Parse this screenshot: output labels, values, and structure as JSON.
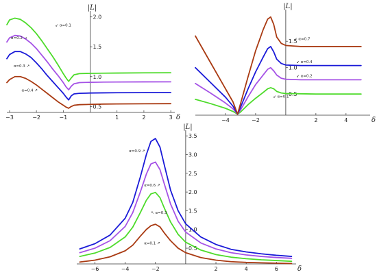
{
  "figure": {
    "background": "#ffffff"
  },
  "chart_data": [
    {
      "id": "panel-a",
      "type": "line",
      "xlim": [
        -3.1,
        3.15
      ],
      "ylim": [
        0.4,
        2.1
      ],
      "xticks": [
        -3,
        -2,
        -1,
        1,
        2,
        3
      ],
      "yticks": [
        0.5,
        1.0,
        1.5,
        2.0
      ],
      "xtick_labels": [
        "−3",
        "−2",
        "−1",
        "1",
        "2",
        "3"
      ],
      "ytick_labels": [
        "0.5",
        "1.0",
        "1.5",
        "2.0"
      ],
      "xlabel": "δ",
      "ylabel": "|L|",
      "grid": false,
      "series": [
        {
          "color": "#4ddb2a",
          "x": [
            -3.1,
            -3,
            -2.8,
            -2.6,
            -2.4,
            -2.2,
            -2,
            -1.8,
            -1.6,
            -1.4,
            -1.2,
            -1,
            -0.9,
            -0.8,
            -0.7,
            -0.6,
            -0.4,
            0,
            0.5,
            1,
            2,
            3
          ],
          "y": [
            1.87,
            1.95,
            1.98,
            1.96,
            1.9,
            1.82,
            1.72,
            1.6,
            1.47,
            1.34,
            1.2,
            1.05,
            0.98,
            0.92,
            0.98,
            1.03,
            1.05,
            1.055,
            1.058,
            1.06,
            1.063,
            1.065
          ]
        },
        {
          "color": "#a552e6",
          "x": [
            -3.1,
            -3,
            -2.8,
            -2.6,
            -2.4,
            -2.2,
            -2,
            -1.8,
            -1.6,
            -1.4,
            -1.2,
            -1,
            -0.9,
            -0.8,
            -0.7,
            -0.6,
            -0.4,
            0,
            0.5,
            1,
            2,
            3
          ],
          "y": [
            1.58,
            1.65,
            1.69,
            1.68,
            1.63,
            1.56,
            1.47,
            1.36,
            1.25,
            1.13,
            1.02,
            0.9,
            0.83,
            0.78,
            0.84,
            0.88,
            0.9,
            0.905,
            0.908,
            0.91,
            0.912,
            0.913
          ]
        },
        {
          "color": "#1a1ad8",
          "x": [
            -3.1,
            -3,
            -2.8,
            -2.6,
            -2.4,
            -2.2,
            -2,
            -1.8,
            -1.6,
            -1.4,
            -1.2,
            -1,
            -0.9,
            -0.8,
            -0.7,
            -0.6,
            -0.4,
            0,
            0.5,
            1,
            2,
            3
          ],
          "y": [
            1.3,
            1.37,
            1.42,
            1.42,
            1.38,
            1.32,
            1.23,
            1.13,
            1.02,
            0.92,
            0.82,
            0.72,
            0.66,
            0.61,
            0.68,
            0.71,
            0.72,
            0.725,
            0.728,
            0.73,
            0.732,
            0.733
          ]
        },
        {
          "color": "#a93a12",
          "x": [
            -3.1,
            -3,
            -2.8,
            -2.6,
            -2.4,
            -2.2,
            -2,
            -1.8,
            -1.6,
            -1.4,
            -1.2,
            -1,
            -0.9,
            -0.8,
            -0.7,
            -0.6,
            -0.4,
            0,
            0.5,
            1,
            2,
            3
          ],
          "y": [
            0.9,
            0.95,
            1.0,
            1.0,
            0.97,
            0.92,
            0.86,
            0.79,
            0.72,
            0.65,
            0.58,
            0.52,
            0.49,
            0.47,
            0.5,
            0.52,
            0.53,
            0.535,
            0.54,
            0.542,
            0.545,
            0.547
          ]
        }
      ],
      "annotations": [
        {
          "text": "↙ α=0.1",
          "x": -1.3,
          "y": 1.84
        },
        {
          "text": "α=0.2 →",
          "x": -2.95,
          "y": 1.63
        },
        {
          "text": "α=0.3 ↗",
          "x": -2.85,
          "y": 1.16
        },
        {
          "text": "α=0.4 ↗",
          "x": -2.55,
          "y": 0.75
        }
      ]
    },
    {
      "id": "panel-b",
      "type": "line",
      "xlim": [
        -6,
        5.6
      ],
      "ylim": [
        0.1,
        2.1
      ],
      "xticks": [
        -4,
        -2,
        2,
        4
      ],
      "yticks": [
        0.5,
        1.0,
        1.5
      ],
      "xtick_labels": [
        "−4",
        "−2",
        "2",
        "4"
      ],
      "ytick_labels": [
        "0.5",
        "1.0",
        "1.5"
      ],
      "xlabel": "δ",
      "ylabel": "|L|",
      "grid": false,
      "series": [
        {
          "color": "#4ddb2a",
          "x": [
            -6,
            -5,
            -4,
            -3.5,
            -3.2,
            -3,
            -2.5,
            -2,
            -1.5,
            -1.2,
            -1,
            -0.8,
            -0.6,
            -0.3,
            0,
            1,
            2,
            3,
            4,
            5
          ],
          "y": [
            0.4,
            0.32,
            0.23,
            0.17,
            0.12,
            0.16,
            0.3,
            0.42,
            0.53,
            0.6,
            0.62,
            0.6,
            0.55,
            0.52,
            0.51,
            0.505,
            0.5,
            0.5,
            0.5,
            0.5
          ]
        },
        {
          "color": "#a552e6",
          "x": [
            -6,
            -5,
            -4,
            -3.5,
            -3.2,
            -3,
            -2.5,
            -2,
            -1.5,
            -1.2,
            -1,
            -0.8,
            -0.6,
            -0.3,
            0,
            1,
            2,
            3,
            4,
            5
          ],
          "y": [
            0.7,
            0.52,
            0.33,
            0.22,
            0.12,
            0.2,
            0.45,
            0.68,
            0.86,
            0.97,
            1.0,
            0.94,
            0.86,
            0.8,
            0.78,
            0.77,
            0.77,
            0.77,
            0.77,
            0.77
          ]
        },
        {
          "color": "#1a1ad8",
          "x": [
            -6,
            -5,
            -4,
            -3.5,
            -3.2,
            -3,
            -2.5,
            -2,
            -1.5,
            -1.2,
            -1,
            -0.8,
            -0.6,
            -0.3,
            0,
            1,
            2,
            3,
            4,
            5
          ],
          "y": [
            1.0,
            0.72,
            0.44,
            0.27,
            0.12,
            0.25,
            0.6,
            0.92,
            1.2,
            1.36,
            1.4,
            1.3,
            1.16,
            1.08,
            1.05,
            1.04,
            1.04,
            1.04,
            1.04,
            1.04
          ]
        },
        {
          "color": "#a93a12",
          "x": [
            -6,
            -5,
            -4,
            -3.5,
            -3.2,
            -3,
            -2.5,
            -2,
            -1.5,
            -1.2,
            -1,
            -0.8,
            -0.6,
            -0.3,
            0,
            1,
            2,
            3,
            4,
            5
          ],
          "y": [
            1.6,
            1.1,
            0.6,
            0.35,
            0.12,
            0.32,
            0.83,
            1.32,
            1.72,
            1.92,
            1.96,
            1.82,
            1.58,
            1.46,
            1.42,
            1.4,
            1.4,
            1.4,
            1.4,
            1.4
          ]
        }
      ],
      "annotations": [
        {
          "text": "↙ α=0.1",
          "x": -0.85,
          "y": 0.43
        },
        {
          "text": "↙ α=0.2",
          "x": 0.7,
          "y": 0.82
        },
        {
          "text": "↙ α=0.4",
          "x": 0.7,
          "y": 1.09
        },
        {
          "text": "↙ α=0.7",
          "x": 0.55,
          "y": 1.52
        }
      ]
    },
    {
      "id": "panel-c",
      "type": "line",
      "xlim": [
        -7.2,
        7.3
      ],
      "ylim": [
        0.08,
        3.65
      ],
      "xticks": [
        -6,
        -4,
        -2,
        2,
        4,
        6
      ],
      "yticks": [
        0.5,
        1.0,
        1.5,
        2.0,
        2.5,
        3.0,
        3.5
      ],
      "xtick_labels": [
        "−6",
        "−4",
        "−2",
        "2",
        "4",
        "6"
      ],
      "ytick_labels": [
        "0.5",
        "1.0",
        "1.5",
        "2.0",
        "2.5",
        "3.0",
        "3.5"
      ],
      "xlabel": "δ",
      "ylabel": "|L|",
      "grid": false,
      "series": [
        {
          "color": "#1a1ad8",
          "x": [
            -7,
            -6,
            -5,
            -4,
            -3.5,
            -3,
            -2.6,
            -2.3,
            -2,
            -1.7,
            -1.4,
            -1,
            -0.5,
            0,
            1,
            2,
            3,
            4,
            5,
            6,
            7
          ],
          "y": [
            0.48,
            0.62,
            0.85,
            1.3,
            1.72,
            2.4,
            3.0,
            3.35,
            3.43,
            3.2,
            2.7,
            2.05,
            1.5,
            1.15,
            0.8,
            0.6,
            0.47,
            0.4,
            0.35,
            0.31,
            0.28
          ]
        },
        {
          "color": "#a552e6",
          "x": [
            -7,
            -6,
            -5,
            -4,
            -3.5,
            -3,
            -2.6,
            -2.3,
            -2,
            -1.7,
            -1.4,
            -1,
            -0.5,
            0,
            1,
            2,
            3,
            4,
            5,
            6,
            7
          ],
          "y": [
            0.38,
            0.5,
            0.7,
            1.08,
            1.45,
            2.0,
            2.48,
            2.75,
            2.8,
            2.6,
            2.2,
            1.68,
            1.22,
            0.93,
            0.64,
            0.48,
            0.38,
            0.32,
            0.28,
            0.25,
            0.23
          ]
        },
        {
          "color": "#4ddb2a",
          "x": [
            -7,
            -6,
            -5,
            -4,
            -3.5,
            -3,
            -2.6,
            -2.3,
            -2,
            -1.7,
            -1.4,
            -1,
            -0.5,
            0,
            1,
            2,
            3,
            4,
            5,
            6,
            7
          ],
          "y": [
            0.28,
            0.37,
            0.52,
            0.8,
            1.06,
            1.45,
            1.78,
            1.95,
            1.99,
            1.85,
            1.56,
            1.2,
            0.87,
            0.66,
            0.45,
            0.33,
            0.26,
            0.22,
            0.19,
            0.17,
            0.15
          ]
        },
        {
          "color": "#a93a12",
          "x": [
            -7,
            -6,
            -5,
            -4,
            -3.5,
            -3,
            -2.6,
            -2.3,
            -2,
            -1.7,
            -1.4,
            -1,
            -0.5,
            0,
            1,
            2,
            3,
            4,
            5,
            6,
            7
          ],
          "y": [
            0.13,
            0.18,
            0.27,
            0.43,
            0.58,
            0.82,
            1.0,
            1.1,
            1.14,
            1.07,
            0.9,
            0.7,
            0.5,
            0.38,
            0.25,
            0.18,
            0.14,
            0.12,
            0.11,
            0.1,
            0.09
          ]
        }
      ],
      "annotations": [
        {
          "text": "α=0.9 ↗",
          "x": -3.75,
          "y": 3.06
        },
        {
          "text": "α=0.6 ↗",
          "x": -2.75,
          "y": 2.15
        },
        {
          "text": "↖ α=0.3",
          "x": -2.3,
          "y": 1.42
        },
        {
          "text": "α=0.1 ↗",
          "x": -2.75,
          "y": 0.6
        }
      ]
    }
  ]
}
